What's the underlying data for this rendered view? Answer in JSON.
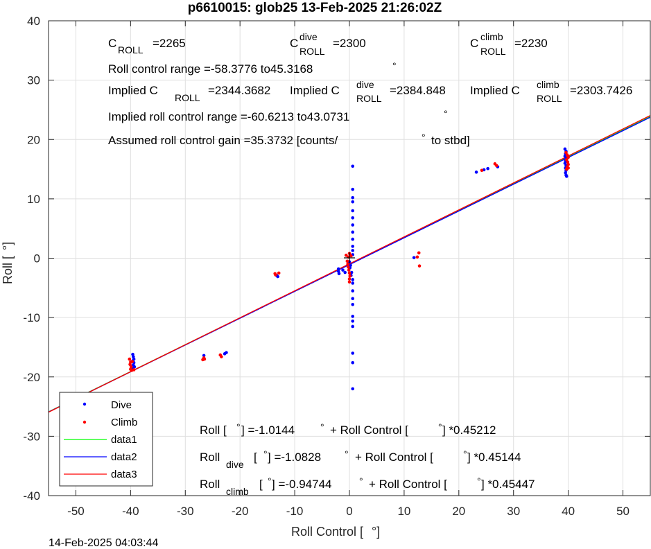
{
  "chart_data": {
    "type": "scatter",
    "title": "p6610015: glob25 13-Feb-2025 21:26:02Z",
    "xlabel": "Roll Control [",
    "xlabel_unit": "°]",
    "ylabel": "Roll [",
    "ylabel_unit": "°]",
    "xlim": [
      -55,
      55
    ],
    "ylim": [
      -40,
      40
    ],
    "xticks": [
      -50,
      -40,
      -30,
      -20,
      -10,
      0,
      10,
      20,
      30,
      40,
      50
    ],
    "yticks": [
      -40,
      -30,
      -20,
      -10,
      0,
      10,
      20,
      30,
      40
    ],
    "grid": true,
    "legend_placement": "bottom-left",
    "timestamp": "14-Feb-2025 04:03:44",
    "series": [
      {
        "name": "Dive",
        "kind": "points",
        "color": "#0000ff",
        "points": [
          [
            -39.6,
            -16.2
          ],
          [
            -39.5,
            -16.6
          ],
          [
            -39.4,
            -17.0
          ],
          [
            -39.6,
            -17.3
          ],
          [
            -39.4,
            -17.6
          ],
          [
            -39.5,
            -18.0
          ],
          [
            -39.3,
            -18.3
          ],
          [
            -39.6,
            -18.6
          ],
          [
            -26.6,
            -16.4
          ],
          [
            -22.5,
            -15.9
          ],
          [
            -22.8,
            -16.1
          ],
          [
            -13.3,
            -2.9
          ],
          [
            -13.1,
            -3.1
          ],
          [
            -2.0,
            -1.8
          ],
          [
            -2.0,
            -2.2
          ],
          [
            -1.9,
            -2.6
          ],
          [
            -1.2,
            -2.0
          ],
          [
            -0.8,
            -2.4
          ],
          [
            0.0,
            -0.6
          ],
          [
            0.2,
            -1.2
          ],
          [
            0.1,
            -1.6
          ],
          [
            0.4,
            -2.4
          ],
          [
            0.3,
            -2.9
          ],
          [
            0.6,
            -3.6
          ],
          [
            0.6,
            15.5
          ],
          [
            0.6,
            11.6
          ],
          [
            0.6,
            10.2
          ],
          [
            0.6,
            9.5
          ],
          [
            0.6,
            8.0
          ],
          [
            0.6,
            6.8
          ],
          [
            0.6,
            5.6
          ],
          [
            0.6,
            4.4
          ],
          [
            0.6,
            3.2
          ],
          [
            0.6,
            2.0
          ],
          [
            0.6,
            1.3
          ],
          [
            0.6,
            0.6
          ],
          [
            0.6,
            -4.2
          ],
          [
            0.6,
            -5.5
          ],
          [
            0.6,
            -6.8
          ],
          [
            0.6,
            -7.8
          ],
          [
            0.6,
            -9.8
          ],
          [
            0.6,
            -10.6
          ],
          [
            0.6,
            -11.5
          ],
          [
            0.6,
            -16.0
          ],
          [
            0.6,
            -17.6
          ],
          [
            0.6,
            -22.0
          ],
          [
            11.8,
            0.1
          ],
          [
            23.2,
            14.5
          ],
          [
            24.6,
            14.9
          ],
          [
            25.3,
            15.1
          ],
          [
            27.1,
            15.4
          ],
          [
            39.4,
            18.4
          ],
          [
            39.6,
            18.0
          ],
          [
            39.5,
            17.6
          ],
          [
            39.4,
            17.2
          ],
          [
            39.6,
            16.8
          ],
          [
            39.5,
            16.4
          ],
          [
            39.4,
            16.0
          ],
          [
            39.6,
            15.6
          ],
          [
            39.5,
            15.2
          ],
          [
            39.6,
            14.8
          ],
          [
            39.5,
            14.4
          ],
          [
            39.6,
            14.0
          ],
          [
            39.7,
            13.8
          ]
        ]
      },
      {
        "name": "Climb",
        "kind": "points",
        "color": "#ff0000",
        "points": [
          [
            -40.2,
            -17.0
          ],
          [
            -40.0,
            -17.5
          ],
          [
            -40.1,
            -17.9
          ],
          [
            -39.9,
            -18.3
          ],
          [
            -40.0,
            -18.7
          ],
          [
            -39.8,
            -18.9
          ],
          [
            -39.4,
            -18.8
          ],
          [
            -39.7,
            -17.4
          ],
          [
            -26.6,
            -16.8
          ],
          [
            -26.8,
            -17.1
          ],
          [
            -26.5,
            -17.0
          ],
          [
            -23.6,
            -16.3
          ],
          [
            -23.4,
            -16.6
          ],
          [
            -13.6,
            -2.6
          ],
          [
            -13.5,
            -2.8
          ],
          [
            -12.9,
            -2.5
          ],
          [
            -0.4,
            -0.5
          ],
          [
            -0.3,
            -1.0
          ],
          [
            -0.2,
            -1.5
          ],
          [
            -0.1,
            -2.0
          ],
          [
            0.0,
            -2.5
          ],
          [
            0.1,
            -3.0
          ],
          [
            0.0,
            -3.5
          ],
          [
            0.0,
            -4.0
          ],
          [
            -0.2,
            0.2
          ],
          [
            0.0,
            0.8
          ],
          [
            0.3,
            0.4
          ],
          [
            -0.6,
            0.5
          ],
          [
            12.4,
            0.2
          ],
          [
            12.7,
            0.9
          ],
          [
            12.8,
            -1.3
          ],
          [
            24.2,
            14.8
          ],
          [
            26.6,
            15.9
          ],
          [
            26.9,
            15.6
          ],
          [
            39.6,
            17.8
          ],
          [
            39.8,
            17.4
          ],
          [
            40.0,
            17.0
          ],
          [
            39.7,
            16.6
          ],
          [
            39.9,
            16.2
          ],
          [
            40.0,
            15.8
          ],
          [
            39.8,
            15.4
          ],
          [
            39.7,
            15.0
          ],
          [
            40.0,
            15.2
          ],
          [
            39.9,
            17.2
          ]
        ]
      },
      {
        "name": "data1",
        "kind": "line",
        "color": "#00ff00",
        "slope": 0.45212,
        "intercept": -1.0144
      },
      {
        "name": "data2",
        "kind": "line",
        "color": "#0000ff",
        "slope": 0.45144,
        "intercept": -1.0828
      },
      {
        "name": "data3",
        "kind": "line",
        "color": "#ff0000",
        "slope": 0.45447,
        "intercept": -0.94744
      }
    ],
    "annotations": {
      "c_roll": {
        "base": "C",
        "sub": "ROLL",
        "value": "=2265"
      },
      "c_roll_dive": {
        "base": "C",
        "sup": "dive",
        "sub": "ROLL",
        "value": "=2300"
      },
      "c_roll_climb": {
        "base": "C",
        "sup": "climb",
        "sub": "ROLL",
        "value": "=2230"
      },
      "roll_control_range": "Roll control range =-58.3776 to45.3168",
      "degree_mark": "°",
      "implied_c": {
        "prefix": "Implied C",
        "sub": "ROLL",
        "value": "=2344.3682"
      },
      "implied_c_dive": {
        "prefix": "Implied C",
        "sup": "dive",
        "sub": "ROLL",
        "value": "=2384.848"
      },
      "implied_c_climb": {
        "prefix": "Implied C",
        "sup": "climb",
        "sub": "ROLL",
        "value": "=2303.7426"
      },
      "implied_range": "Implied roll control range =-60.6213 to43.0731",
      "gain_left": "Assumed roll control gain =35.3732 [counts/",
      "gain_right": "to stbd]",
      "fit_all": {
        "a": "Roll [",
        "b": "] =-1.0144",
        "c": "+ Roll Control [",
        "d": "] *0.45212"
      },
      "fit_dive": {
        "a": "Roll",
        "sub": "dive",
        "b": "[",
        "c": "] =-1.0828",
        "d": "+ Roll Control [",
        "e": "] *0.45144"
      },
      "fit_climb": {
        "a": "Roll",
        "sub": "climb",
        "b": "[",
        "c": "] =-0.94744",
        "d": "+ Roll Control [",
        "e": "] *0.45447"
      }
    }
  }
}
